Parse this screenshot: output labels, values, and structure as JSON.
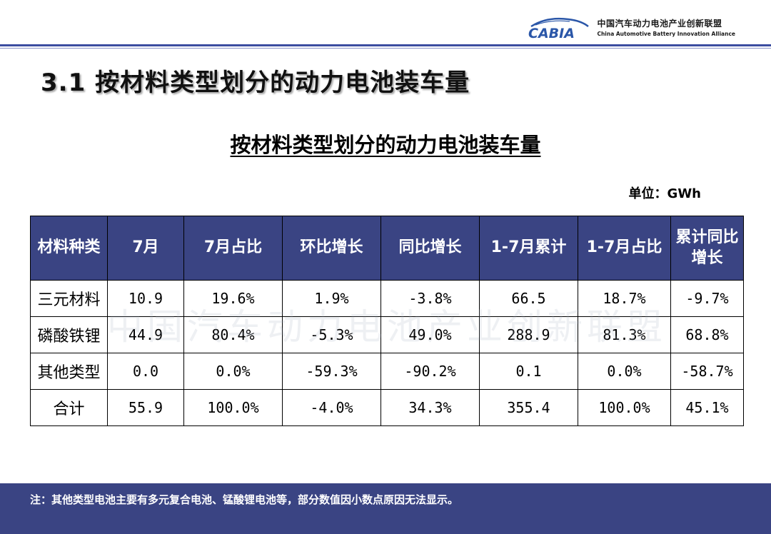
{
  "header": {
    "logo_cn": "中国汽车动力电池产业创新联盟",
    "logo_en": "China Automotive Battery Innovation Alliance",
    "logo_mark": "CABIA"
  },
  "slide_title": "3.1 按材料类型划分的动力电池装车量",
  "table_title": "按材料类型划分的动力电池装车量",
  "unit": "单位：GWh",
  "watermark": "中国汽车动力电池产业创新联盟",
  "table": {
    "headers": [
      "材料种类",
      "7月",
      "7月占比",
      "环比增长",
      "同比增长",
      "1-7月累计",
      "1-7月占比",
      "累计同比增长"
    ],
    "rows": [
      [
        "三元材料",
        "10.9",
        "19.6%",
        "1.9%",
        "-3.8%",
        "66.5",
        "18.7%",
        "-9.7%"
      ],
      [
        "磷酸铁锂",
        "44.9",
        "80.4%",
        "-5.3%",
        "49.0%",
        "288.9",
        "81.3%",
        "68.8%"
      ],
      [
        "其他类型",
        "0.0",
        "0.0%",
        "-59.3%",
        "-90.2%",
        "0.1",
        "0.0%",
        "-58.7%"
      ],
      [
        "合计",
        "55.9",
        "100.0%",
        "-4.0%",
        "34.3%",
        "355.4",
        "100.0%",
        "45.1%"
      ]
    ]
  },
  "footer_note": "注：其他类型电池主要有多元复合电池、锰酸锂电池等，部分数值因小数点原因无法显示。",
  "colors": {
    "header_accent": "#3b4da0",
    "table_header_bg": "#3a4483",
    "footer_bg": "#3a4483"
  }
}
